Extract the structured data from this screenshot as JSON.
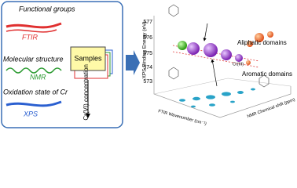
{
  "left_panel": {
    "items": [
      {
        "label": "Functional groups",
        "method": "FTIR"
      },
      {
        "label": "Molecular structure",
        "method": "NMR"
      },
      {
        "label": "Oxidation state of Cr",
        "method": "XPS"
      }
    ],
    "samples": "Samples",
    "concentration": "Cr(VI) concentration"
  },
  "right_panel": {
    "y_axis_label": "XPS Binding Energy (eV)",
    "y_ticks": [
      "577",
      "576",
      "575",
      "574",
      "573"
    ],
    "x_axis_label": "FTIR Wavenumber (cm⁻¹)",
    "z_axis_label": "NMR Chemical shift (ppm)",
    "annotations": [
      "Aliphatic domains",
      "Cr(III)",
      "Aromatic domains"
    ]
  }
}
